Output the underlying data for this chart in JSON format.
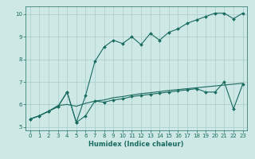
{
  "xlabel": "Humidex (Indice chaleur)",
  "bg_color": "#cde8e5",
  "grid_color": "#a8ceca",
  "line_color": "#1a6b60",
  "xlim": [
    -0.5,
    23.5
  ],
  "ylim": [
    4.85,
    10.35
  ],
  "xticks": [
    0,
    1,
    2,
    3,
    4,
    5,
    6,
    7,
    8,
    9,
    10,
    11,
    12,
    13,
    14,
    15,
    16,
    17,
    18,
    19,
    20,
    21,
    22,
    23
  ],
  "yticks": [
    5,
    6,
    7,
    8,
    9,
    10
  ],
  "line1_x": [
    0,
    1,
    2,
    3,
    4,
    5,
    6,
    7,
    8,
    9,
    10,
    11,
    12,
    13,
    14,
    15,
    16,
    17,
    18,
    19,
    20,
    21,
    22,
    23
  ],
  "line1_y": [
    5.35,
    5.5,
    5.7,
    5.9,
    6.55,
    5.2,
    6.4,
    7.9,
    8.55,
    8.85,
    8.7,
    9.0,
    8.65,
    9.15,
    8.85,
    9.2,
    9.35,
    9.6,
    9.75,
    9.9,
    10.05,
    10.05,
    9.8,
    10.05
  ],
  "line2_x": [
    0,
    1,
    2,
    3,
    4,
    5,
    6,
    7,
    8,
    9,
    10,
    11,
    12,
    13,
    14,
    15,
    16,
    17,
    18,
    19,
    20,
    21,
    22,
    23
  ],
  "line2_y": [
    5.35,
    5.5,
    5.7,
    5.9,
    6.55,
    5.2,
    5.5,
    6.15,
    6.1,
    6.2,
    6.25,
    6.35,
    6.4,
    6.45,
    6.5,
    6.55,
    6.6,
    6.65,
    6.7,
    6.55,
    6.55,
    7.0,
    5.8,
    6.9
  ],
  "line3_x": [
    0,
    1,
    2,
    3,
    4,
    5,
    6,
    7,
    8,
    9,
    10,
    11,
    12,
    13,
    14,
    15,
    16,
    17,
    18,
    19,
    20,
    21,
    22,
    23
  ],
  "line3_y": [
    5.35,
    5.5,
    5.7,
    5.95,
    6.0,
    5.92,
    6.05,
    6.15,
    6.2,
    6.3,
    6.35,
    6.42,
    6.48,
    6.52,
    6.57,
    6.62,
    6.66,
    6.7,
    6.74,
    6.78,
    6.82,
    6.86,
    6.9,
    6.94
  ]
}
